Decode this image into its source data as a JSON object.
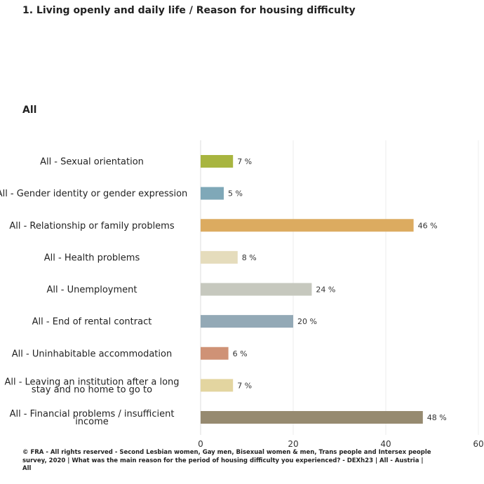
{
  "page": {
    "title": "1. Living openly and daily life / Reason for housing difficulty",
    "subtitle": "All",
    "footer": "© FRA - All rights reserved - Second Lesbian women, Gay men, Bisexual women & men, Trans people and Intersex people survey, 2020 | What was the main reason for the period of housing difficulty you experienced? - DEXh23 | All - Austria | All"
  },
  "chart_data": {
    "type": "bar",
    "orientation": "horizontal",
    "title": "1. Living openly and daily life / Reason for housing difficulty",
    "xlabel": "",
    "ylabel": "",
    "xlim": [
      0,
      60
    ],
    "xticks": [
      0,
      20,
      40,
      60
    ],
    "value_suffix": " %",
    "grid": true,
    "categories": [
      [
        "All - Sexual orientation"
      ],
      [
        "All - Gender identity or gender expression"
      ],
      [
        "All - Relationship or family problems"
      ],
      [
        "All - Health problems"
      ],
      [
        "All - Unemployment"
      ],
      [
        "All - End of rental contract"
      ],
      [
        "All - Uninhabitable accommodation"
      ],
      [
        "All - Leaving an institution after a long",
        "stay and no home to go to"
      ],
      [
        "All - Financial problems / insufficient",
        "income"
      ]
    ],
    "values": [
      7,
      5,
      46,
      8,
      24,
      20,
      6,
      7,
      48
    ],
    "colors": [
      "#a8b540",
      "#7fa8b8",
      "#dcab60",
      "#e5dcbc",
      "#c6c8be",
      "#93a9b6",
      "#cf9276",
      "#e3d5a0",
      "#968a70"
    ]
  }
}
